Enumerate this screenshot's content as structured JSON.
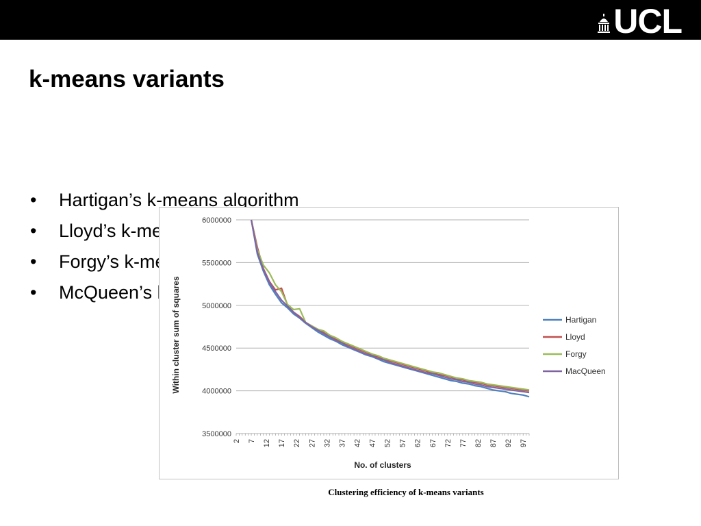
{
  "header": {
    "logo_text": "UCL",
    "logo_icon": "portico-icon",
    "bar_color": "#000000"
  },
  "slide": {
    "title": "k-means variants",
    "bullets": [
      "Hartigan’s k-means algorithm",
      "Lloyd’s k-means algorithm",
      "Forgy’s k-means algorithm",
      "McQueen’s k-means algorithm"
    ],
    "caption": "Clustering efficiency of k-means variants"
  },
  "chart_data": {
    "type": "line",
    "title": "",
    "xlabel": "No. of clusters",
    "ylabel": "Within cluster sum of squares",
    "ylim": [
      3500000,
      6000000
    ],
    "yticks": [
      3500000,
      4000000,
      4500000,
      5000000,
      5500000,
      6000000
    ],
    "xlim": [
      2,
      99
    ],
    "xticks": [
      2,
      7,
      12,
      17,
      22,
      27,
      32,
      37,
      42,
      47,
      52,
      57,
      62,
      67,
      72,
      77,
      82,
      87,
      92,
      97
    ],
    "grid": true,
    "legend_position": "right",
    "x": [
      7,
      9,
      11,
      13,
      15,
      17,
      19,
      21,
      23,
      25,
      27,
      29,
      31,
      33,
      35,
      37,
      39,
      41,
      43,
      45,
      47,
      49,
      51,
      53,
      55,
      57,
      59,
      61,
      63,
      65,
      67,
      69,
      71,
      73,
      75,
      77,
      79,
      81,
      83,
      85,
      87,
      89,
      91,
      93,
      95,
      97,
      99
    ],
    "series": [
      {
        "name": "Hartigan",
        "color": "#4f81bd",
        "values": [
          6000000,
          5600000,
          5400000,
          5240000,
          5130000,
          5030000,
          4970000,
          4900000,
          4850000,
          4790000,
          4740000,
          4690000,
          4650000,
          4610000,
          4580000,
          4540000,
          4510000,
          4480000,
          4450000,
          4420000,
          4400000,
          4370000,
          4340000,
          4320000,
          4300000,
          4280000,
          4260000,
          4240000,
          4220000,
          4200000,
          4180000,
          4160000,
          4140000,
          4120000,
          4110000,
          4090000,
          4080000,
          4060000,
          4050000,
          4030000,
          4010000,
          4000000,
          3990000,
          3970000,
          3960000,
          3950000,
          3930000
        ]
      },
      {
        "name": "Lloyd",
        "color": "#c0504d",
        "values": [
          6000000,
          5680000,
          5430000,
          5280000,
          5180000,
          5200000,
          5000000,
          4920000,
          4870000,
          4800000,
          4760000,
          4720000,
          4680000,
          4640000,
          4600000,
          4570000,
          4540000,
          4510000,
          4480000,
          4450000,
          4420000,
          4400000,
          4370000,
          4350000,
          4330000,
          4310000,
          4290000,
          4270000,
          4250000,
          4230000,
          4210000,
          4190000,
          4180000,
          4160000,
          4140000,
          4130000,
          4110000,
          4100000,
          4090000,
          4070000,
          4060000,
          4050000,
          4040000,
          4030000,
          4020000,
          4010000,
          4000000
        ]
      },
      {
        "name": "Forgy",
        "color": "#9bbb59",
        "values": [
          6000000,
          5650000,
          5470000,
          5380000,
          5240000,
          5160000,
          5010000,
          4950000,
          4960000,
          4800000,
          4760000,
          4720000,
          4700000,
          4650000,
          4620000,
          4580000,
          4550000,
          4520000,
          4490000,
          4460000,
          4430000,
          4410000,
          4380000,
          4360000,
          4340000,
          4320000,
          4300000,
          4280000,
          4260000,
          4240000,
          4220000,
          4210000,
          4190000,
          4170000,
          4150000,
          4140000,
          4120000,
          4110000,
          4100000,
          4080000,
          4070000,
          4060000,
          4050000,
          4040000,
          4030000,
          4020000,
          4010000
        ]
      },
      {
        "name": "MacQueen",
        "color": "#8064a2",
        "values": [
          6000000,
          5620000,
          5420000,
          5270000,
          5160000,
          5060000,
          4990000,
          4920000,
          4860000,
          4800000,
          4750000,
          4710000,
          4670000,
          4630000,
          4590000,
          4560000,
          4520000,
          4490000,
          4460000,
          4430000,
          4410000,
          4380000,
          4360000,
          4330000,
          4310000,
          4290000,
          4270000,
          4250000,
          4230000,
          4210000,
          4200000,
          4180000,
          4160000,
          4140000,
          4130000,
          4110000,
          4100000,
          4080000,
          4070000,
          4050000,
          4040000,
          4030000,
          4020000,
          4010000,
          4000000,
          3990000,
          3980000
        ]
      }
    ]
  }
}
